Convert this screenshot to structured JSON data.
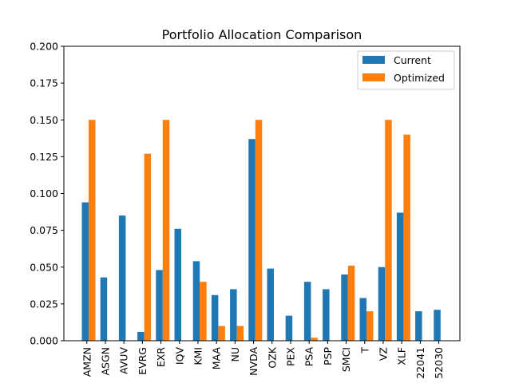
{
  "chart_data": {
    "type": "bar",
    "title": "Portfolio Allocation Comparison",
    "xlabel": "",
    "ylabel": "",
    "ylim": [
      0,
      0.2
    ],
    "yticks": [
      "0.000",
      "0.025",
      "0.050",
      "0.075",
      "0.100",
      "0.125",
      "0.150",
      "0.175",
      "0.200"
    ],
    "categories": [
      "AMZN",
      "ASGN",
      "AVUV",
      "EVRG",
      "EXR",
      "IQV",
      "KMI",
      "MAA",
      "NU",
      "NVDA",
      "OZK",
      "PEX",
      "PSA",
      "PSP",
      "SMCI",
      "T",
      "VZ",
      "XLF",
      "22041",
      "52030"
    ],
    "series": [
      {
        "name": "Current",
        "color": "#1f77b4",
        "values": [
          0.094,
          0.043,
          0.085,
          0.006,
          0.048,
          0.076,
          0.054,
          0.031,
          0.035,
          0.137,
          0.049,
          0.017,
          0.04,
          0.035,
          0.045,
          0.029,
          0.05,
          0.087,
          0.02,
          0.021
        ]
      },
      {
        "name": "Optimized",
        "color": "#ff7f0e",
        "values": [
          0.15,
          0.0,
          0.0,
          0.127,
          0.15,
          0.0,
          0.04,
          0.01,
          0.01,
          0.15,
          0.0,
          0.0,
          0.002,
          0.0,
          0.051,
          0.02,
          0.15,
          0.14,
          0.0,
          0.0
        ]
      }
    ],
    "legend": {
      "position": "top-right"
    },
    "grid": false
  }
}
